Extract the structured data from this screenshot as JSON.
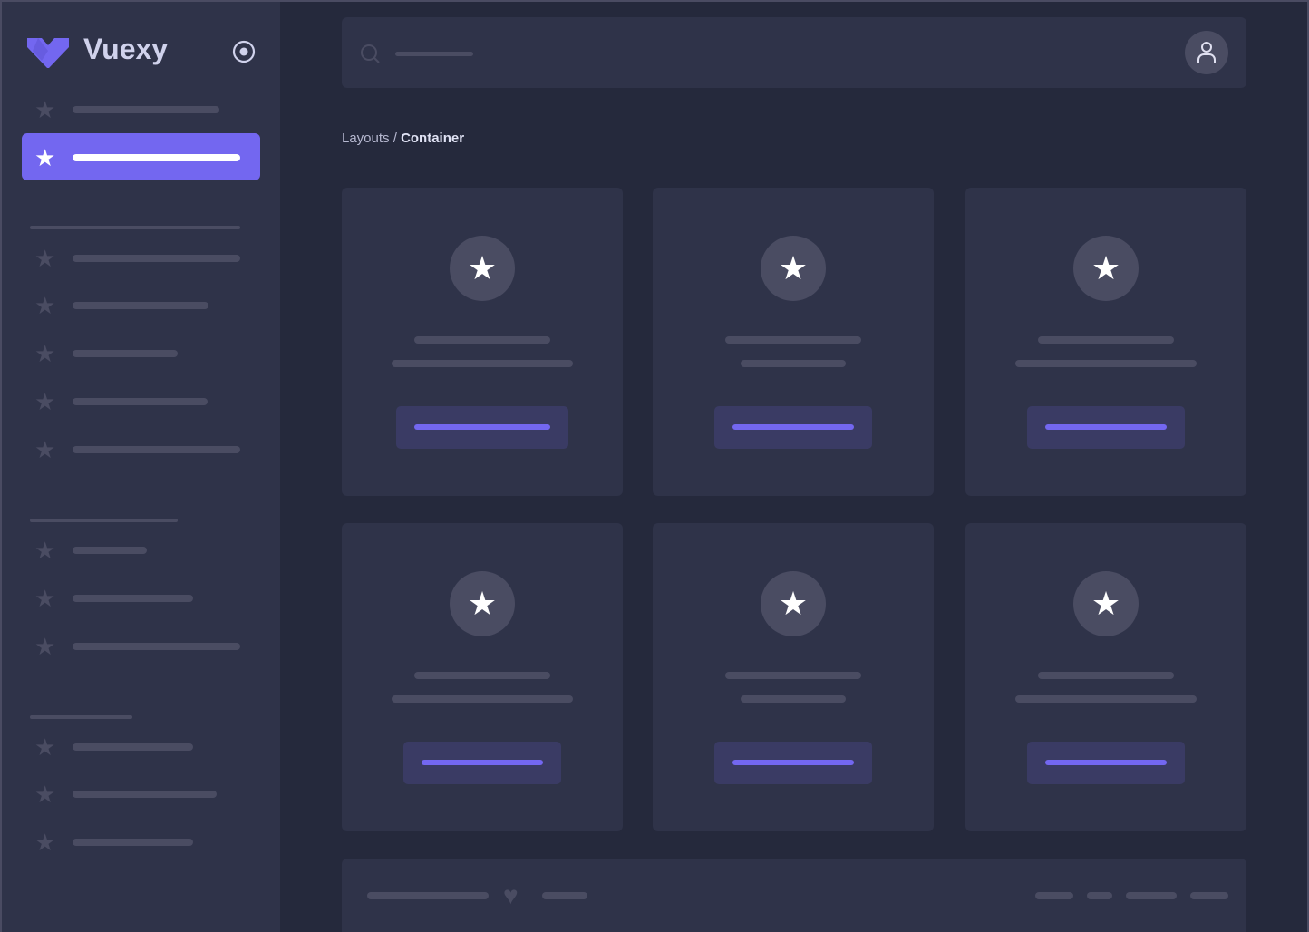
{
  "brand": {
    "name": "Vuexy"
  },
  "breadcrumb": {
    "parent": "Layouts",
    "separator": " / ",
    "current": "Container"
  },
  "colors": {
    "primary": "#7367f0",
    "sidebar": "#2f3349",
    "background": "#25293c",
    "placeholder": "#4a4c62"
  },
  "icons": {
    "logo": "vuexy-logo",
    "toggle": "radio-circle-icon",
    "search": "search-icon",
    "user": "user-icon",
    "nav": "star-icon",
    "card": "star-icon",
    "footer": "heart-icon"
  },
  "sidebar": {
    "active_index": 1
  }
}
